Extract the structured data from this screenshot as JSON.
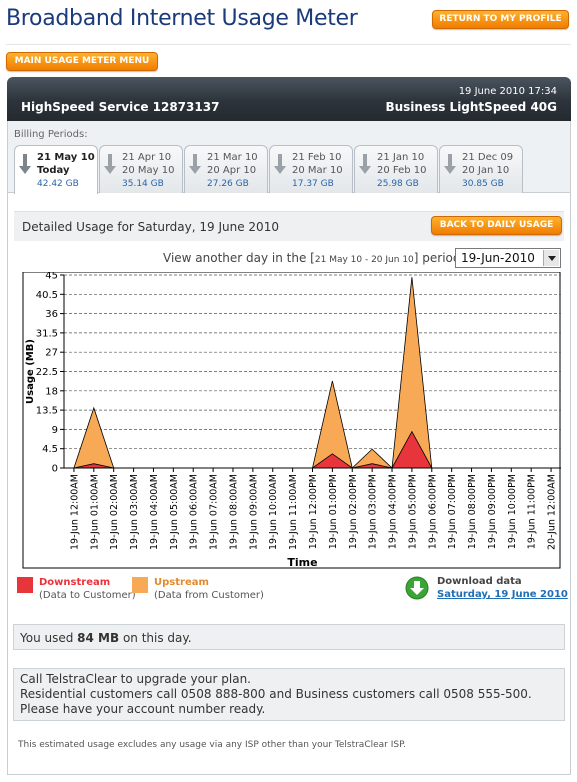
{
  "header": {
    "title": "Broadband Internet Usage Meter",
    "return_label": "RETURN TO MY PROFILE",
    "main_menu_label": "MAIN USAGE METER MENU"
  },
  "service": {
    "datetime": "19 June 2010 17:34",
    "service_name": "HighSpeed Service 12873137",
    "plan": "Business LightSpeed 40G"
  },
  "billing": {
    "label": "Billing Periods:",
    "periods": [
      {
        "start": "21 May 10",
        "end": "Today",
        "usage": "42.42 GB",
        "active": true
      },
      {
        "start": "21 Apr 10",
        "end": "20 May 10",
        "usage": "35.14 GB",
        "active": false
      },
      {
        "start": "21 Mar 10",
        "end": "20 Apr 10",
        "usage": "27.26 GB",
        "active": false
      },
      {
        "start": "21 Feb 10",
        "end": "20 Mar 10",
        "usage": "17.37 GB",
        "active": false
      },
      {
        "start": "21 Jan 10",
        "end": "20 Feb 10",
        "usage": "25.98 GB",
        "active": false
      },
      {
        "start": "21 Dec 09",
        "end": "20 Jan 10",
        "usage": "30.85 GB",
        "active": false
      }
    ]
  },
  "detail": {
    "title": "Detailed Usage for Saturday, 19 June 2010",
    "back_label": "BACK TO DAILY USAGE",
    "view_prefix": "View another day in the [",
    "period_range": "21 May 10 - 20 Jun 10",
    "view_suffix": "] period:",
    "selected_date": "19-Jun-2010"
  },
  "chart_data": {
    "type": "area",
    "xlabel": "Time",
    "ylabel": "Usage (MB)",
    "ylim": [
      0,
      45
    ],
    "yticks": [
      "0",
      "4.5",
      "9",
      "13.5",
      "18",
      "22.5",
      "27",
      "31.5",
      "36",
      "40.5",
      "45"
    ],
    "grid": true,
    "categories": [
      "19-Jun 12:00AM",
      "19-Jun 01:00AM",
      "19-Jun 02:00AM",
      "19-Jun 03:00AM",
      "19-Jun 04:00AM",
      "19-Jun 05:00AM",
      "19-Jun 06:00AM",
      "19-Jun 07:00AM",
      "19-Jun 08:00AM",
      "19-Jun 09:00AM",
      "19-Jun 10:00AM",
      "19-Jun 11:00AM",
      "19-Jun 12:00PM",
      "19-Jun 01:00PM",
      "19-Jun 02:00PM",
      "19-Jun 03:00PM",
      "19-Jun 04:00PM",
      "19-Jun 05:00PM",
      "19-Jun 06:00PM",
      "19-Jun 07:00PM",
      "19-Jun 08:00PM",
      "19-Jun 09:00PM",
      "19-Jun 10:00PM",
      "19-Jun 11:00PM",
      "20-Jun 12:00AM"
    ],
    "series": [
      {
        "name": "Downstream",
        "color": "#e8353c",
        "values": [
          0,
          1,
          0,
          0,
          0,
          0,
          0,
          0,
          0,
          0,
          0,
          0,
          0,
          3.3,
          0,
          1,
          0,
          8.5,
          0,
          0,
          0,
          0,
          0,
          0,
          0
        ]
      },
      {
        "name": "Upstream",
        "color": "#f7a955",
        "values": [
          0,
          13,
          0,
          0,
          0,
          0,
          0,
          0,
          0,
          0,
          0,
          0,
          0,
          17,
          0,
          3.4,
          0,
          36,
          0,
          0,
          0,
          0,
          0,
          0,
          0
        ]
      }
    ]
  },
  "legend": {
    "downstream_title": "Downstream",
    "downstream_sub": "(Data to Customer)",
    "downstream_color": "#e8353c",
    "upstream_title": "Upstream",
    "upstream_sub": "(Data from Customer)",
    "upstream_color": "#f7a955"
  },
  "download": {
    "title": "Download data",
    "link": "Saturday, 19 June 2010"
  },
  "summary": {
    "prefix": "You used ",
    "amount": "84 MB",
    "suffix": " on this day."
  },
  "upgrade": {
    "line1": "Call TelstraClear to upgrade your plan.",
    "line2": "Residential customers call 0508 888-800 and Business customers call 0508 555-500.",
    "line3": "Please have your account number ready."
  },
  "footnote": "This estimated usage excludes any usage via any ISP other than your TelstraClear ISP."
}
